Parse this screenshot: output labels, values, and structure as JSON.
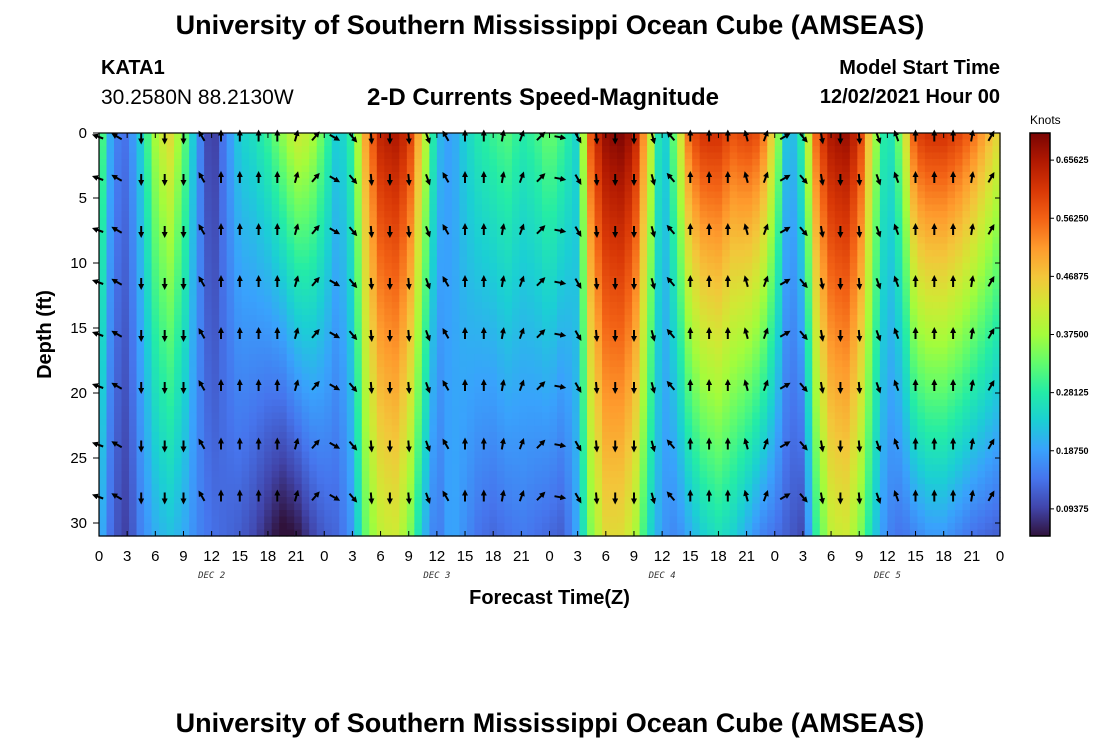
{
  "header": {
    "title": "University of Southern Mississippi Ocean Cube (AMSEAS)",
    "station": "KATA1",
    "coordinates": "30.2580N  88.2130W",
    "chart_title": "2-D Currents Speed-Magnitude",
    "model_start_label": "Model Start Time",
    "model_start_value": "12/02/2021 Hour 00"
  },
  "footer": {
    "title": "University of Southern Mississippi Ocean Cube (AMSEAS)"
  },
  "chart_data": {
    "type": "heatmap",
    "title": "2-D Currents Speed-Magnitude",
    "xlabel": "Forecast Time(Z)",
    "ylabel": "Depth (ft)",
    "x_range_hours": [
      0,
      96
    ],
    "x_tick_hours": [
      0,
      3,
      6,
      9,
      12,
      15,
      18,
      21,
      24,
      27,
      30,
      33,
      36,
      39,
      42,
      45,
      48,
      51,
      54,
      57,
      60,
      63,
      66,
      69,
      72,
      75,
      78,
      81,
      84,
      87,
      90,
      93,
      96
    ],
    "x_tick_labels": [
      "0",
      "3",
      "6",
      "9",
      "12",
      "15",
      "18",
      "21",
      "0",
      "3",
      "6",
      "9",
      "12",
      "15",
      "18",
      "21",
      "0",
      "3",
      "6",
      "9",
      "12",
      "15",
      "18",
      "21",
      "0",
      "3",
      "6",
      "9",
      "12",
      "15",
      "18",
      "21",
      "0"
    ],
    "day_labels": [
      {
        "label": "DEC 2",
        "hour": 12
      },
      {
        "label": "DEC 3",
        "hour": 36
      },
      {
        "label": "DEC 4",
        "hour": 60
      },
      {
        "label": "DEC 5",
        "hour": 84
      }
    ],
    "y_range_ft": [
      0,
      31
    ],
    "y_ticks": [
      0,
      5,
      10,
      15,
      20,
      25,
      30
    ],
    "y_inverted": true,
    "colorbar": {
      "unit": "Knots",
      "range": [
        0.05,
        0.7
      ],
      "tick_values": [
        0.65625,
        0.5625,
        0.46875,
        0.375,
        0.28125,
        0.1875,
        0.09375
      ],
      "tick_labels": [
        "0.65625",
        "0.56250",
        "0.46875",
        "0.37500",
        "0.28125",
        "0.18750",
        "0.09375"
      ],
      "colors": [
        "#30123b",
        "#4145ab",
        "#4675ed",
        "#39a2fc",
        "#1bcfd4",
        "#24eca6",
        "#61fc6c",
        "#a4fc3b",
        "#d1e834",
        "#f3c63a",
        "#fe9b2d",
        "#f36315",
        "#d93806",
        "#b11901",
        "#7a0403"
      ]
    },
    "speed_columns": [
      {
        "hour": 0,
        "top": 0.36,
        "bottom": 0.22
      },
      {
        "hour": 1.5,
        "top": 0.16,
        "bottom": 0.12
      },
      {
        "hour": 3,
        "top": 0.14,
        "bottom": 0.09
      },
      {
        "hour": 4.5,
        "top": 0.24,
        "bottom": 0.16
      },
      {
        "hour": 6,
        "top": 0.38,
        "bottom": 0.2
      },
      {
        "hour": 7.5,
        "top": 0.45,
        "bottom": 0.22
      },
      {
        "hour": 9,
        "top": 0.34,
        "bottom": 0.2
      },
      {
        "hour": 10.5,
        "top": 0.18,
        "bottom": 0.16
      },
      {
        "hour": 12,
        "top": 0.07,
        "bottom": 0.14
      },
      {
        "hour": 13.5,
        "top": 0.16,
        "bottom": 0.13
      },
      {
        "hour": 15,
        "top": 0.24,
        "bottom": 0.12
      },
      {
        "hour": 16.5,
        "top": 0.26,
        "bottom": 0.1
      },
      {
        "hour": 18,
        "top": 0.3,
        "bottom": 0.07
      },
      {
        "hour": 19.5,
        "top": 0.36,
        "bottom": 0.04
      },
      {
        "hour": 21,
        "top": 0.42,
        "bottom": 0.05
      },
      {
        "hour": 22.5,
        "top": 0.4,
        "bottom": 0.09
      },
      {
        "hour": 24,
        "top": 0.32,
        "bottom": 0.12
      },
      {
        "hour": 25.5,
        "top": 0.22,
        "bottom": 0.13
      },
      {
        "hour": 27,
        "top": 0.3,
        "bottom": 0.18
      },
      {
        "hour": 28.5,
        "top": 0.52,
        "bottom": 0.34
      },
      {
        "hour": 30,
        "top": 0.64,
        "bottom": 0.4
      },
      {
        "hour": 31.5,
        "top": 0.66,
        "bottom": 0.42
      },
      {
        "hour": 33,
        "top": 0.62,
        "bottom": 0.36
      },
      {
        "hour": 34.5,
        "top": 0.44,
        "bottom": 0.22
      },
      {
        "hour": 36,
        "top": 0.22,
        "bottom": 0.14
      },
      {
        "hour": 37.5,
        "top": 0.18,
        "bottom": 0.2
      },
      {
        "hour": 39,
        "top": 0.24,
        "bottom": 0.17
      },
      {
        "hour": 40.5,
        "top": 0.28,
        "bottom": 0.14
      },
      {
        "hour": 42,
        "top": 0.3,
        "bottom": 0.13
      },
      {
        "hour": 43.5,
        "top": 0.32,
        "bottom": 0.14
      },
      {
        "hour": 45,
        "top": 0.28,
        "bottom": 0.15
      },
      {
        "hour": 46.5,
        "top": 0.3,
        "bottom": 0.14
      },
      {
        "hour": 48,
        "top": 0.34,
        "bottom": 0.13
      },
      {
        "hour": 49.5,
        "top": 0.3,
        "bottom": 0.12
      },
      {
        "hour": 51,
        "top": 0.24,
        "bottom": 0.2
      },
      {
        "hour": 52.5,
        "top": 0.6,
        "bottom": 0.36
      },
      {
        "hour": 54,
        "top": 0.68,
        "bottom": 0.44
      },
      {
        "hour": 55.5,
        "top": 0.7,
        "bottom": 0.44
      },
      {
        "hour": 57,
        "top": 0.66,
        "bottom": 0.4
      },
      {
        "hour": 58.5,
        "top": 0.46,
        "bottom": 0.26
      },
      {
        "hour": 60,
        "top": 0.2,
        "bottom": 0.18
      },
      {
        "hour": 61.5,
        "top": 0.36,
        "bottom": 0.16
      },
      {
        "hour": 63,
        "top": 0.58,
        "bottom": 0.2
      },
      {
        "hour": 64.5,
        "top": 0.62,
        "bottom": 0.24
      },
      {
        "hour": 66,
        "top": 0.62,
        "bottom": 0.26
      },
      {
        "hour": 67.5,
        "top": 0.58,
        "bottom": 0.24
      },
      {
        "hour": 69,
        "top": 0.6,
        "bottom": 0.2
      },
      {
        "hour": 70.5,
        "top": 0.58,
        "bottom": 0.16
      },
      {
        "hour": 72,
        "top": 0.42,
        "bottom": 0.14
      },
      {
        "hour": 73.5,
        "top": 0.18,
        "bottom": 0.12
      },
      {
        "hour": 75,
        "top": 0.3,
        "bottom": 0.1
      },
      {
        "hour": 76.5,
        "top": 0.58,
        "bottom": 0.3
      },
      {
        "hour": 78,
        "top": 0.66,
        "bottom": 0.4
      },
      {
        "hour": 79.5,
        "top": 0.68,
        "bottom": 0.42
      },
      {
        "hour": 81,
        "top": 0.62,
        "bottom": 0.36
      },
      {
        "hour": 82.5,
        "top": 0.4,
        "bottom": 0.24
      },
      {
        "hour": 84,
        "top": 0.24,
        "bottom": 0.16
      },
      {
        "hour": 85.5,
        "top": 0.36,
        "bottom": 0.14
      },
      {
        "hour": 87,
        "top": 0.6,
        "bottom": 0.16
      },
      {
        "hour": 88.5,
        "top": 0.62,
        "bottom": 0.18
      },
      {
        "hour": 90,
        "top": 0.62,
        "bottom": 0.18
      },
      {
        "hour": 91.5,
        "top": 0.6,
        "bottom": 0.16
      },
      {
        "hour": 93,
        "top": 0.56,
        "bottom": 0.14
      },
      {
        "hour": 94.5,
        "top": 0.5,
        "bottom": 0.13
      },
      {
        "hour": 96,
        "top": 0.44,
        "bottom": 0.12
      }
    ],
    "arrow_depths_ft": [
      0,
      3.5,
      7.5,
      11.5,
      15.5,
      19.5,
      24,
      28
    ],
    "arrow_columns": [
      {
        "hour": 0,
        "dir_deg": 290
      },
      {
        "hour": 2,
        "dir_deg": 300
      },
      {
        "hour": 4.5,
        "dir_deg": 180
      },
      {
        "hour": 7,
        "dir_deg": 180
      },
      {
        "hour": 9,
        "dir_deg": 180
      },
      {
        "hour": 11,
        "dir_deg": 330
      },
      {
        "hour": 13,
        "dir_deg": 0
      },
      {
        "hour": 15,
        "dir_deg": 0
      },
      {
        "hour": 17,
        "dir_deg": 0
      },
      {
        "hour": 19,
        "dir_deg": 0
      },
      {
        "hour": 21,
        "dir_deg": 15
      },
      {
        "hour": 23,
        "dir_deg": 40
      },
      {
        "hour": 25,
        "dir_deg": 120
      },
      {
        "hour": 27,
        "dir_deg": 140
      },
      {
        "hour": 29,
        "dir_deg": 175
      },
      {
        "hour": 31,
        "dir_deg": 180
      },
      {
        "hour": 33,
        "dir_deg": 175
      },
      {
        "hour": 35,
        "dir_deg": 160
      },
      {
        "hour": 37,
        "dir_deg": 330
      },
      {
        "hour": 39,
        "dir_deg": 0
      },
      {
        "hour": 41,
        "dir_deg": 0
      },
      {
        "hour": 43,
        "dir_deg": 10
      },
      {
        "hour": 45,
        "dir_deg": 20
      },
      {
        "hour": 47,
        "dir_deg": 45
      },
      {
        "hour": 49,
        "dir_deg": 100
      },
      {
        "hour": 51,
        "dir_deg": 150
      },
      {
        "hour": 53,
        "dir_deg": 175
      },
      {
        "hour": 55,
        "dir_deg": 180
      },
      {
        "hour": 57,
        "dir_deg": 180
      },
      {
        "hour": 59,
        "dir_deg": 165
      },
      {
        "hour": 61,
        "dir_deg": 320
      },
      {
        "hour": 63,
        "dir_deg": 0
      },
      {
        "hour": 65,
        "dir_deg": 0
      },
      {
        "hour": 67,
        "dir_deg": 0
      },
      {
        "hour": 69,
        "dir_deg": 345
      },
      {
        "hour": 71,
        "dir_deg": 20
      },
      {
        "hour": 73,
        "dir_deg": 60
      },
      {
        "hour": 75,
        "dir_deg": 140
      },
      {
        "hour": 77,
        "dir_deg": 170
      },
      {
        "hour": 79,
        "dir_deg": 180
      },
      {
        "hour": 81,
        "dir_deg": 175
      },
      {
        "hour": 83,
        "dir_deg": 160
      },
      {
        "hour": 85,
        "dir_deg": 340
      },
      {
        "hour": 87,
        "dir_deg": 0
      },
      {
        "hour": 89,
        "dir_deg": 0
      },
      {
        "hour": 91,
        "dir_deg": 0
      },
      {
        "hour": 93,
        "dir_deg": 10
      },
      {
        "hour": 95,
        "dir_deg": 30
      }
    ]
  }
}
